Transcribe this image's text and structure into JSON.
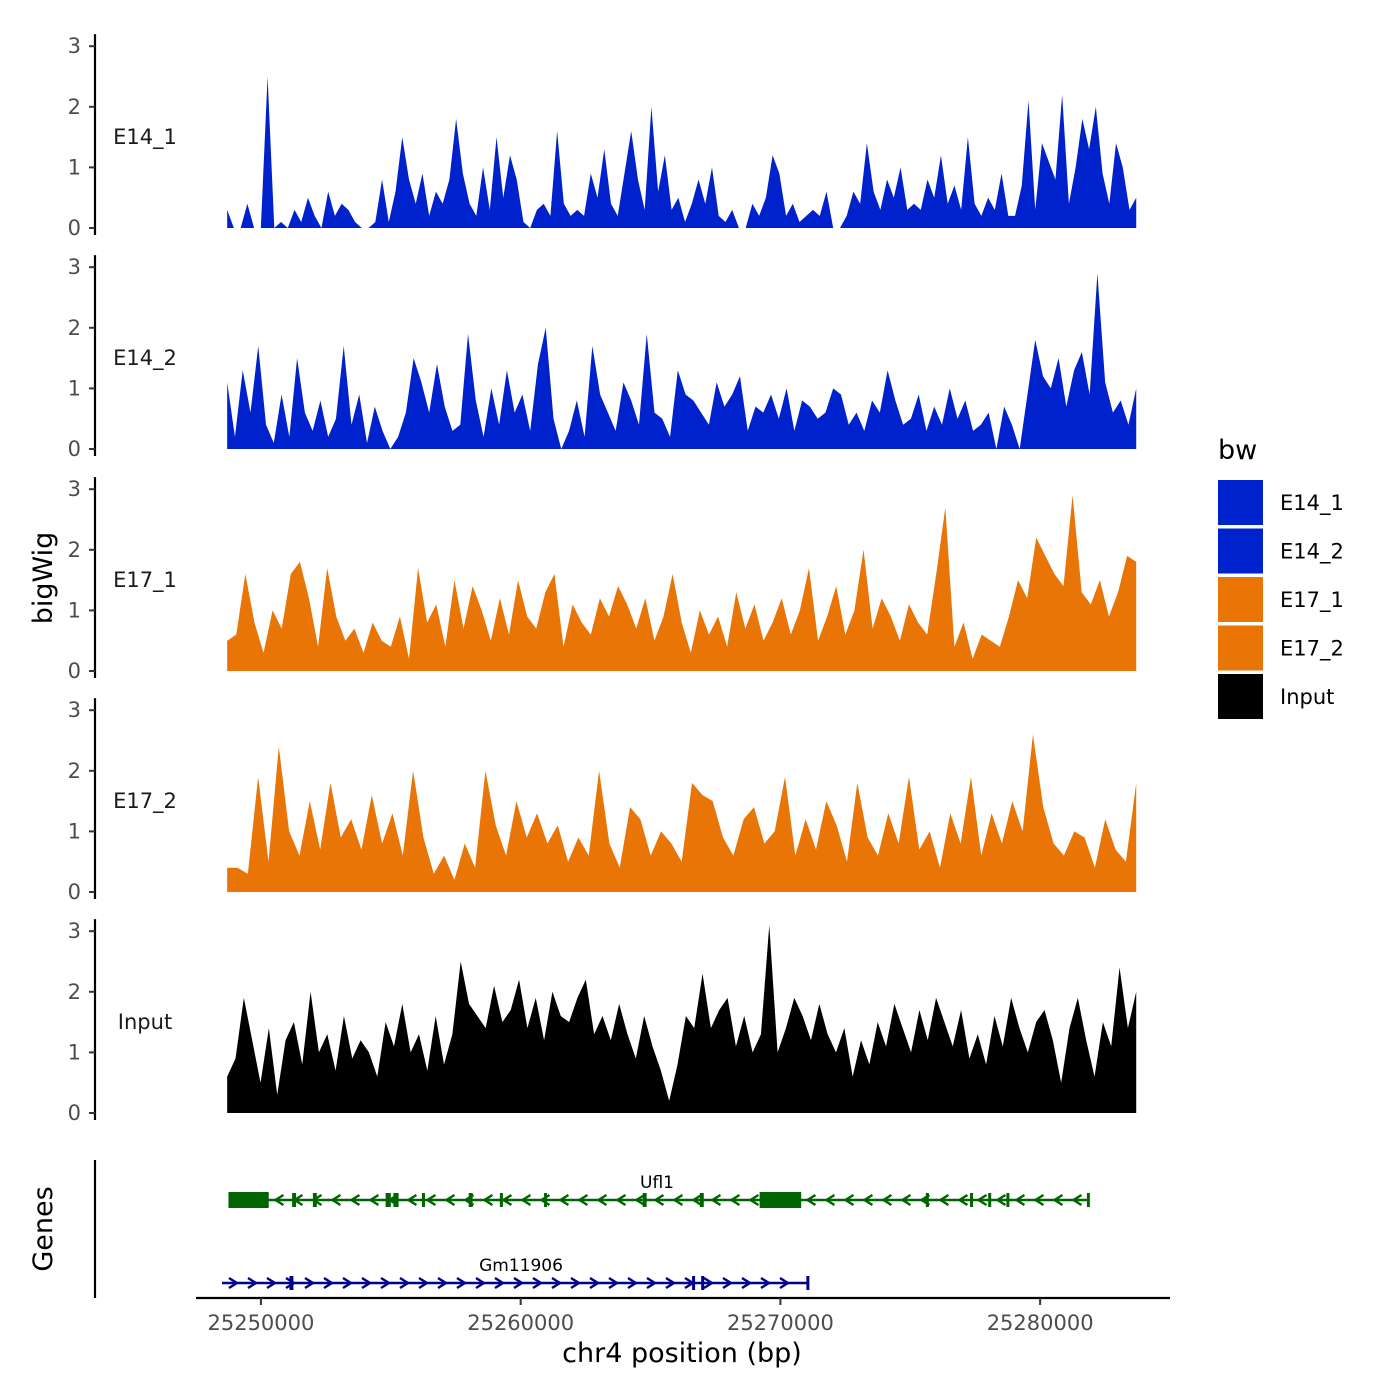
{
  "chart_data": {
    "type": "area",
    "genome_axis": {
      "xlabel": "chr4 position (bp)",
      "xlim": [
        25247500,
        25285000
      ],
      "ticks": [
        25250000,
        25260000,
        25270000,
        25280000
      ],
      "tick_labels": [
        "25250000",
        "25260000",
        "25270000",
        "25280000"
      ]
    },
    "signal_axis": {
      "ylabel": "bigWig",
      "ylim": [
        0,
        3.2
      ],
      "ticks": [
        0,
        1,
        2,
        3
      ],
      "tick_labels": [
        "0",
        "1",
        "2",
        "3"
      ]
    },
    "x_start": 25248700,
    "x_end": 25283700,
    "tracks": [
      {
        "name": "E14_1",
        "color": "#0022CC",
        "values": [
          0.3,
          0,
          0,
          0.4,
          0,
          0,
          2.5,
          0,
          0.1,
          0,
          0.3,
          0.1,
          0.5,
          0.2,
          0,
          0.6,
          0.2,
          0.4,
          0.3,
          0.1,
          0,
          0,
          0.1,
          0.8,
          0.1,
          0.6,
          1.5,
          0.8,
          0.4,
          0.9,
          0.2,
          0.6,
          0.4,
          0.8,
          1.8,
          0.9,
          0.4,
          0.2,
          1.0,
          0.3,
          1.5,
          0.5,
          1.2,
          0.8,
          0.1,
          0,
          0.3,
          0.4,
          0.2,
          1.6,
          0.4,
          0.2,
          0.3,
          0.2,
          0.9,
          0.5,
          1.3,
          0.4,
          0.2,
          0.9,
          1.6,
          0.8,
          0.3,
          2.0,
          0.6,
          1.2,
          0.3,
          0.5,
          0.1,
          0.4,
          0.8,
          0.4,
          1.0,
          0.2,
          0.1,
          0.3,
          0,
          0,
          0.4,
          0.2,
          0.5,
          1.2,
          0.9,
          0.2,
          0.4,
          0.1,
          0.2,
          0.3,
          0.2,
          0.6,
          0,
          0,
          0.2,
          0.6,
          0.4,
          1.4,
          0.6,
          0.3,
          0.8,
          0.5,
          1.0,
          0.3,
          0.4,
          0.3,
          0.8,
          0.5,
          1.2,
          0.4,
          0.7,
          0.3,
          1.5,
          0.4,
          0.2,
          0.5,
          0.3,
          0.9,
          0.2,
          0.2,
          0.7,
          2.1,
          0.3,
          1.4,
          1.1,
          0.8,
          2.2,
          0.4,
          1.0,
          1.8,
          1.3,
          2.0,
          0.9,
          0.4,
          1.4,
          1.0,
          0.3,
          0.5
        ]
      },
      {
        "name": "E14_2",
        "color": "#0022CC",
        "values": [
          1.1,
          0.2,
          1.3,
          0.6,
          1.7,
          0.4,
          0.1,
          0.9,
          0.2,
          1.5,
          0.6,
          0.3,
          0.8,
          0.2,
          0.5,
          1.7,
          0.4,
          0.9,
          0.1,
          0.7,
          0.3,
          0,
          0.2,
          0.6,
          1.5,
          1.1,
          0.6,
          1.4,
          0.7,
          0.3,
          0.4,
          1.9,
          0.8,
          0.2,
          1.0,
          0.4,
          1.3,
          0.6,
          0.9,
          0.3,
          1.4,
          2.0,
          0.5,
          0,
          0.3,
          0.8,
          0.2,
          1.7,
          0.9,
          0.6,
          0.3,
          1.1,
          0.8,
          0.4,
          1.9,
          0.6,
          0.5,
          0.2,
          1.3,
          0.9,
          0.8,
          0.6,
          0.4,
          1.1,
          0.7,
          0.9,
          1.2,
          0.3,
          0.7,
          0.6,
          0.9,
          0.5,
          1.0,
          0.3,
          0.8,
          0.7,
          0.5,
          0.6,
          1.0,
          0.9,
          0.4,
          0.6,
          0.3,
          0.8,
          0.6,
          1.3,
          0.8,
          0.4,
          0.5,
          0.9,
          0.3,
          0.7,
          0.4,
          1.0,
          0.5,
          0.8,
          0.3,
          0.4,
          0.6,
          0,
          0.7,
          0.4,
          0,
          0.9,
          1.8,
          1.2,
          1.0,
          1.5,
          0.7,
          1.3,
          1.6,
          0.9,
          2.9,
          1.1,
          0.6,
          0.8,
          0.4,
          1.0
        ]
      },
      {
        "name": "E17_1",
        "color": "#E87505",
        "values": [
          0.5,
          0.6,
          1.6,
          0.8,
          0.3,
          1.0,
          0.7,
          1.6,
          1.8,
          1.2,
          0.4,
          1.7,
          0.9,
          0.5,
          0.7,
          0.3,
          0.8,
          0.5,
          0.4,
          0.9,
          0.2,
          1.7,
          0.8,
          1.1,
          0.4,
          1.5,
          0.7,
          1.4,
          1.0,
          0.5,
          1.2,
          0.6,
          1.5,
          0.9,
          0.7,
          1.3,
          1.6,
          0.4,
          1.1,
          0.8,
          0.6,
          1.2,
          0.9,
          1.4,
          1.1,
          0.7,
          1.2,
          0.5,
          0.9,
          1.6,
          0.8,
          0.3,
          1.0,
          0.6,
          0.9,
          0.4,
          1.3,
          0.7,
          1.1,
          0.5,
          0.8,
          1.2,
          0.6,
          1.0,
          1.7,
          0.5,
          0.9,
          1.4,
          0.6,
          1.0,
          2.0,
          0.7,
          1.2,
          0.9,
          0.5,
          1.1,
          0.8,
          0.6,
          1.6,
          2.7,
          0.4,
          0.8,
          0.2,
          0.6,
          0.5,
          0.4,
          0.9,
          1.5,
          1.2,
          2.2,
          1.9,
          1.6,
          1.4,
          2.9,
          1.3,
          1.1,
          1.5,
          0.9,
          1.3,
          1.9,
          1.8
        ]
      },
      {
        "name": "E17_2",
        "color": "#E87505",
        "values": [
          0.4,
          0.4,
          0.3,
          1.9,
          0.5,
          2.4,
          1.0,
          0.6,
          1.5,
          0.7,
          1.8,
          0.9,
          1.2,
          0.7,
          1.6,
          0.8,
          1.3,
          0.6,
          2.0,
          0.9,
          0.3,
          0.6,
          0.2,
          0.8,
          0.4,
          2.0,
          1.1,
          0.6,
          1.5,
          0.9,
          1.3,
          0.8,
          1.1,
          0.5,
          0.9,
          0.6,
          2.0,
          0.8,
          0.4,
          1.4,
          1.2,
          0.6,
          1.0,
          0.8,
          0.5,
          1.8,
          1.6,
          1.5,
          0.9,
          0.6,
          1.2,
          1.4,
          0.8,
          1.0,
          1.9,
          0.6,
          1.2,
          0.7,
          1.5,
          1.1,
          0.5,
          1.8,
          0.9,
          0.6,
          1.3,
          0.8,
          1.9,
          0.7,
          1.0,
          0.4,
          1.3,
          0.8,
          1.9,
          0.6,
          1.3,
          0.8,
          1.5,
          1.0,
          2.6,
          1.4,
          0.8,
          0.6,
          1.0,
          0.9,
          0.4,
          1.2,
          0.7,
          0.5,
          1.8
        ]
      },
      {
        "name": "Input",
        "color": "#000000",
        "values": [
          0.6,
          0.9,
          1.9,
          1.2,
          0.5,
          1.4,
          0.3,
          1.2,
          1.5,
          0.8,
          2.0,
          1.0,
          1.3,
          0.7,
          1.6,
          0.9,
          1.2,
          1.0,
          0.6,
          1.5,
          1.1,
          1.8,
          1.0,
          1.3,
          0.7,
          1.6,
          0.8,
          1.3,
          2.5,
          1.8,
          1.6,
          1.4,
          2.1,
          1.5,
          1.7,
          2.2,
          1.4,
          1.9,
          1.2,
          2.0,
          1.6,
          1.5,
          1.9,
          2.2,
          1.3,
          1.6,
          1.2,
          1.8,
          1.3,
          0.9,
          1.6,
          1.1,
          0.7,
          0.2,
          0.8,
          1.6,
          1.4,
          2.3,
          1.4,
          1.7,
          1.9,
          1.1,
          1.6,
          1.0,
          1.3,
          3.1,
          1.0,
          1.4,
          1.9,
          1.6,
          1.2,
          1.8,
          1.3,
          1.0,
          1.4,
          0.6,
          1.2,
          0.8,
          1.5,
          1.1,
          1.8,
          1.4,
          1.0,
          1.7,
          1.2,
          1.9,
          1.5,
          1.1,
          1.7,
          0.9,
          1.3,
          0.8,
          1.6,
          1.1,
          1.9,
          1.4,
          1.0,
          1.5,
          1.7,
          1.2,
          0.5,
          1.4,
          1.9,
          1.2,
          0.6,
          1.5,
          1.1,
          2.4,
          1.4,
          2.0
        ]
      }
    ],
    "genes": [
      {
        "name": "Ufl1",
        "strand": "-",
        "color": "#006400",
        "start": 25248750,
        "end": 25281800,
        "exons": [
          [
            25248750,
            25250300
          ],
          [
            25251200,
            25251350
          ],
          [
            25252000,
            25252150
          ],
          [
            25254800,
            25255000
          ],
          [
            25255100,
            25255300
          ],
          [
            25256200,
            25256300
          ],
          [
            25258000,
            25258150
          ],
          [
            25259200,
            25259300
          ],
          [
            25260900,
            25261000
          ],
          [
            25264700,
            25264850
          ],
          [
            25266900,
            25267050
          ],
          [
            25269200,
            25270800
          ],
          [
            25275600,
            25275700
          ],
          [
            25277300,
            25277400
          ],
          [
            25278000,
            25278100
          ],
          [
            25278700,
            25278800
          ],
          [
            25281800,
            25281900
          ]
        ]
      },
      {
        "name": "Gm11906",
        "strand": "+",
        "color": "#00008B",
        "start": 25248500,
        "end": 25271100,
        "exons": [
          [
            25251100,
            25251250
          ],
          [
            25266600,
            25266700
          ],
          [
            25266950,
            25267050
          ],
          [
            25271000,
            25271100
          ]
        ]
      }
    ],
    "legend": {
      "title": "bw",
      "position": "right",
      "entries": [
        {
          "label": "E14_1",
          "color": "#0022CC"
        },
        {
          "label": "E14_2",
          "color": "#0022CC"
        },
        {
          "label": "E17_1",
          "color": "#E87505"
        },
        {
          "label": "E17_2",
          "color": "#E87505"
        },
        {
          "label": "Input",
          "color": "#000000"
        }
      ]
    },
    "genes_axis_label": "Genes"
  }
}
